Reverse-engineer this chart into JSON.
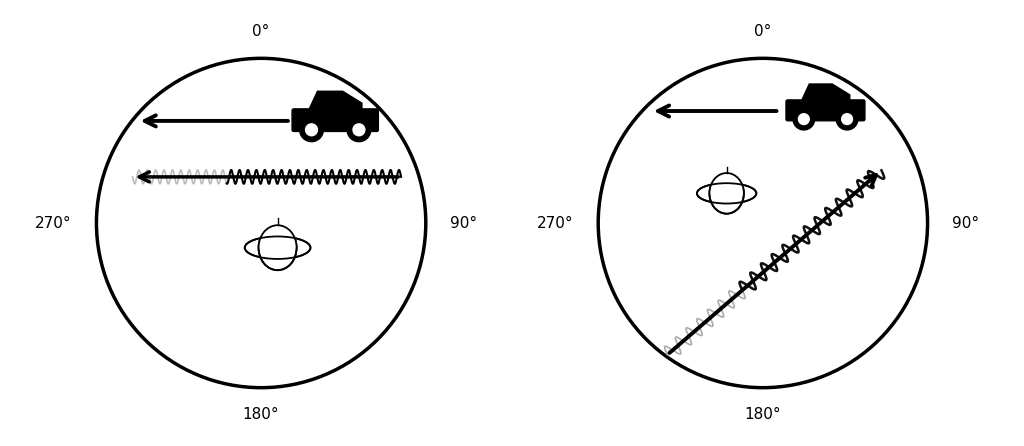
{
  "bg_color": "#ffffff",
  "circle_color": "#000000",
  "circle_lw": 2.5,
  "label_0": "0°",
  "label_90": "90°",
  "label_180": "180°",
  "label_270": "270°",
  "label_fontsize": 11,
  "wave_color_light": "#bbbbbb",
  "wave_color_dark": "#000000",
  "diag_wave_color_dark": "#111111",
  "diag_wave_color_light": "#aaaaaa"
}
